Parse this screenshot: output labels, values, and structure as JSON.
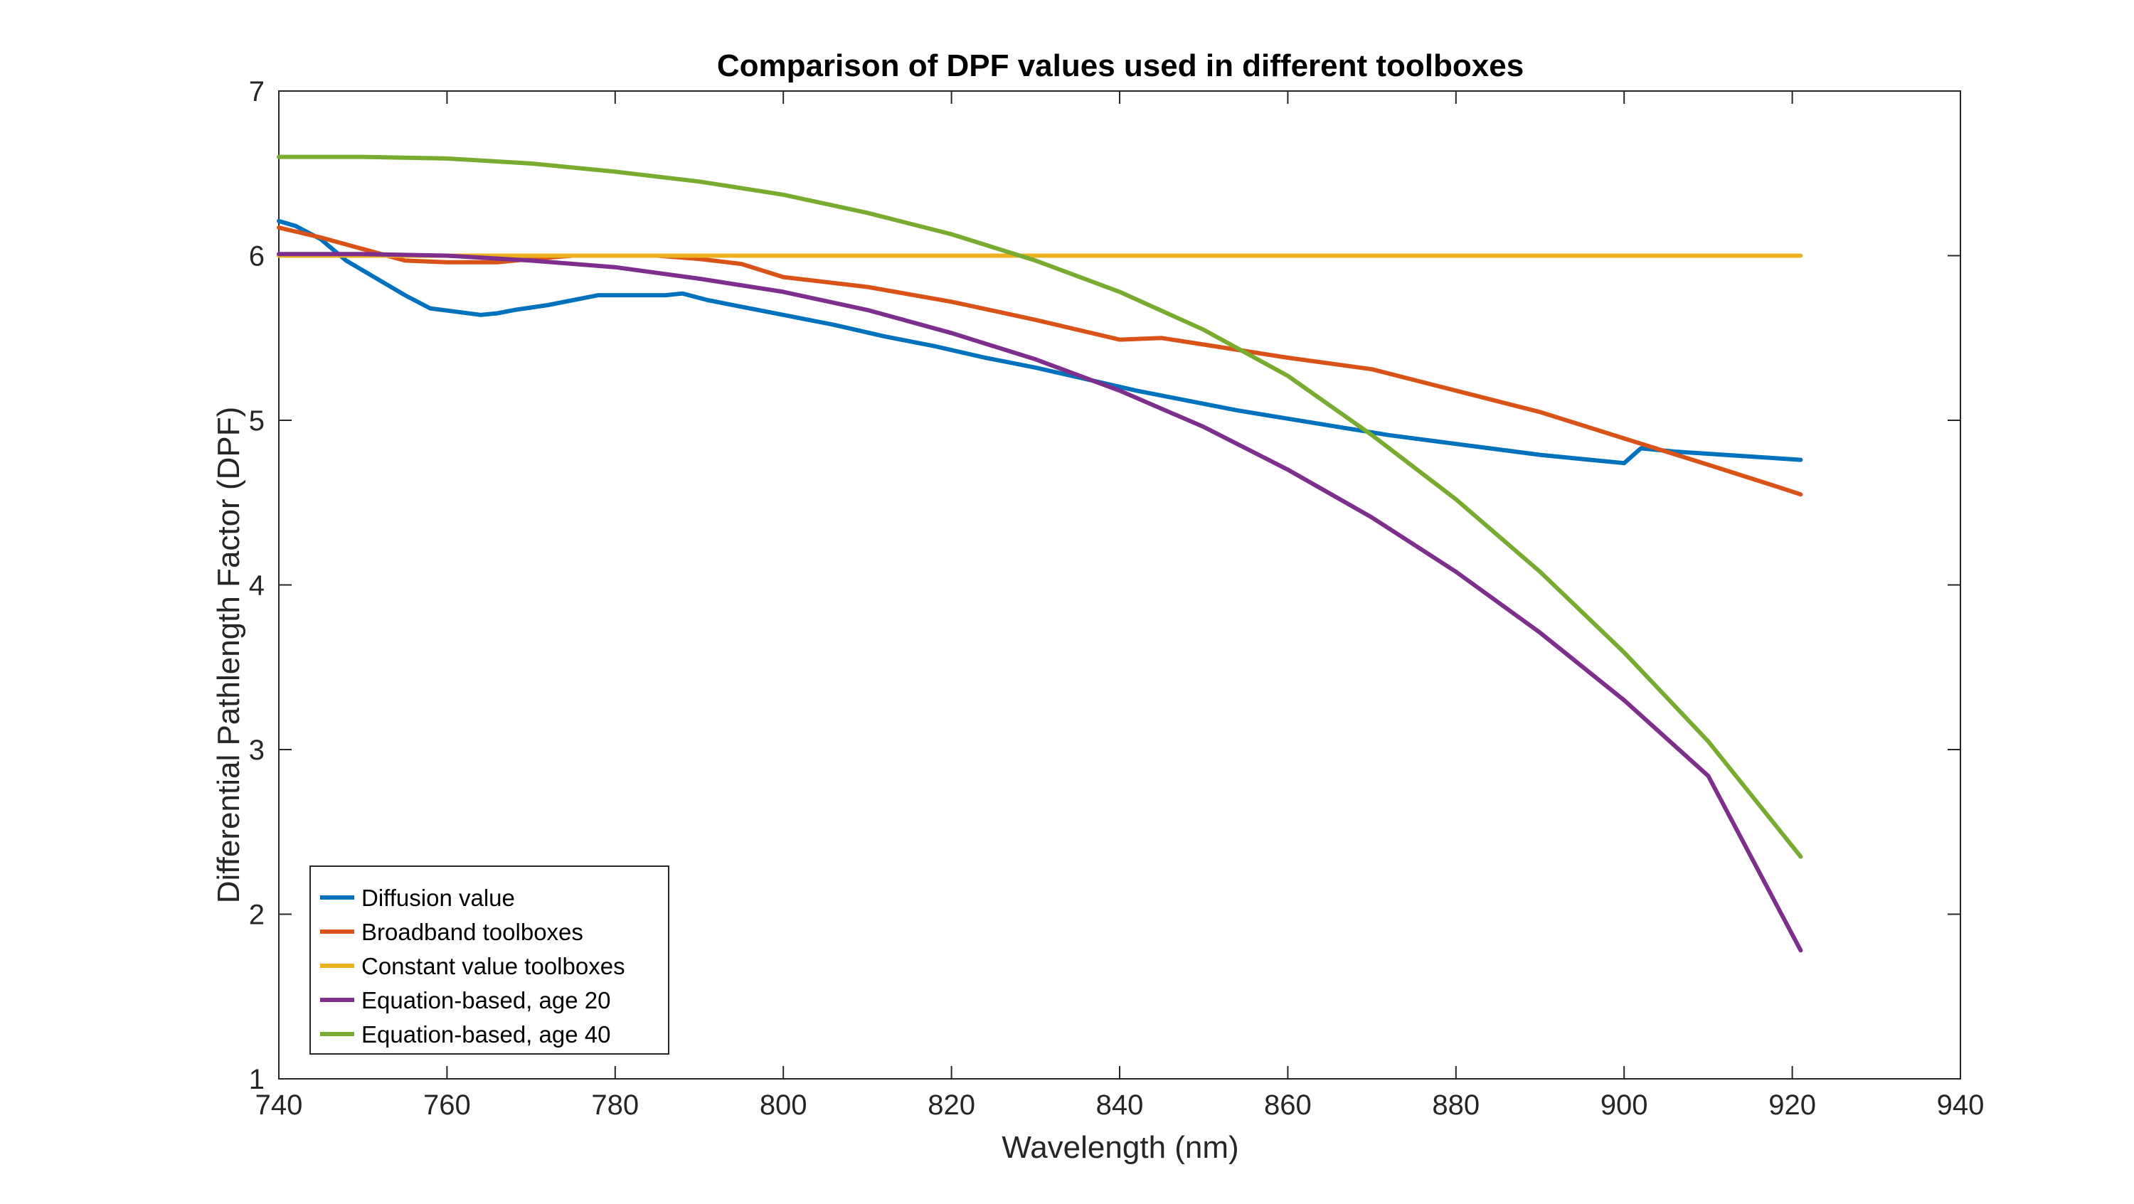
{
  "chart_data": {
    "type": "line",
    "title": "Comparison of DPF values used in different toolboxes",
    "xlabel": "Wavelength (nm)",
    "ylabel": "Differential Pathlength Factor (DPF)",
    "xlim": [
      740,
      940
    ],
    "ylim": [
      1,
      7
    ],
    "xticks": [
      740,
      760,
      780,
      800,
      820,
      840,
      860,
      880,
      900,
      920,
      940
    ],
    "yticks": [
      1,
      2,
      3,
      4,
      5,
      6,
      7
    ],
    "grid": false,
    "legend_position": "bottom-left",
    "colors": {
      "axis": "#262626",
      "Diffusion value": "#0072BD",
      "Broadband toolboxes": "#D95319",
      "Constant value toolboxes": "#EDB120",
      "Equation-based, age 20": "#7E2F8E",
      "Equation-based, age 40": "#77AC30"
    },
    "series": [
      {
        "name": "Diffusion value",
        "x": [
          740,
          742,
          745,
          748,
          752,
          755,
          758,
          761,
          764,
          766,
          768,
          772,
          775,
          778,
          781,
          784,
          786,
          788,
          791,
          795,
          800,
          806,
          812,
          818,
          824,
          830,
          836,
          842,
          848,
          854,
          860,
          866,
          872,
          878,
          884,
          890,
          896,
          900,
          902,
          906,
          912,
          918,
          921
        ],
        "y": [
          6.21,
          6.18,
          6.1,
          5.97,
          5.85,
          5.76,
          5.68,
          5.66,
          5.64,
          5.65,
          5.67,
          5.7,
          5.73,
          5.76,
          5.76,
          5.76,
          5.76,
          5.77,
          5.73,
          5.69,
          5.64,
          5.58,
          5.51,
          5.45,
          5.38,
          5.32,
          5.25,
          5.18,
          5.12,
          5.06,
          5.01,
          4.96,
          4.91,
          4.87,
          4.83,
          4.79,
          4.76,
          4.74,
          4.83,
          4.81,
          4.79,
          4.77,
          4.76
        ]
      },
      {
        "name": "Broadband toolboxes",
        "x": [
          740,
          745,
          750,
          755,
          760,
          766,
          770,
          775,
          780,
          785,
          790,
          795,
          800,
          810,
          820,
          830,
          840,
          845,
          850,
          860,
          870,
          880,
          890,
          900,
          910,
          918,
          921
        ],
        "y": [
          6.17,
          6.11,
          6.04,
          5.97,
          5.96,
          5.96,
          5.98,
          6.0,
          6.0,
          6.0,
          5.98,
          5.95,
          5.87,
          5.81,
          5.72,
          5.61,
          5.49,
          5.5,
          5.46,
          5.38,
          5.31,
          5.18,
          5.05,
          4.89,
          4.73,
          4.6,
          4.55
        ]
      },
      {
        "name": "Constant value toolboxes",
        "x": [
          740,
          921
        ],
        "y": [
          6.0,
          6.0
        ]
      },
      {
        "name": "Equation-based, age 20",
        "x": [
          740,
          750,
          760,
          770,
          780,
          790,
          800,
          810,
          820,
          830,
          840,
          850,
          860,
          870,
          880,
          890,
          900,
          910,
          921
        ],
        "y": [
          6.01,
          6.01,
          6.0,
          5.97,
          5.93,
          5.86,
          5.78,
          5.67,
          5.53,
          5.37,
          5.18,
          4.96,
          4.7,
          4.41,
          4.08,
          3.71,
          3.3,
          2.84,
          1.78
        ]
      },
      {
        "name": "Equation-based, age 40",
        "x": [
          740,
          750,
          760,
          770,
          780,
          790,
          800,
          810,
          820,
          830,
          840,
          850,
          860,
          870,
          880,
          890,
          900,
          910,
          921
        ],
        "y": [
          6.6,
          6.6,
          6.59,
          6.56,
          6.51,
          6.45,
          6.37,
          6.26,
          6.13,
          5.97,
          5.78,
          5.55,
          5.27,
          4.91,
          4.52,
          4.08,
          3.59,
          3.05,
          2.35
        ]
      }
    ]
  }
}
